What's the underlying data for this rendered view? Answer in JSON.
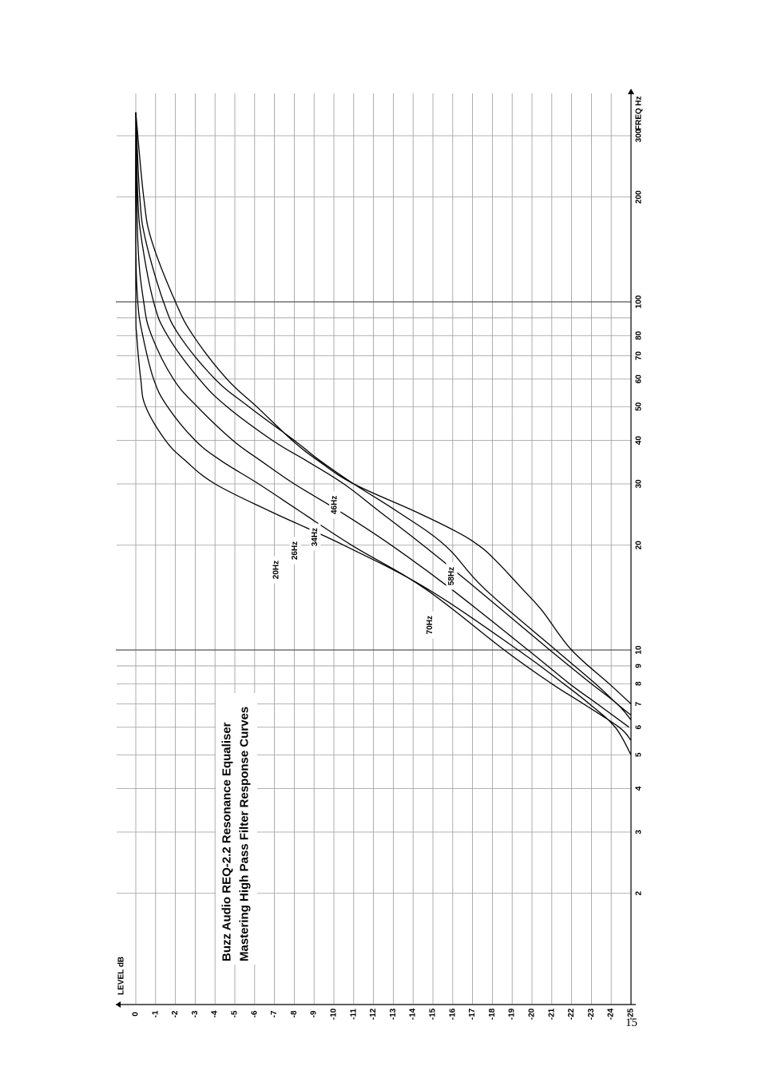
{
  "page": {
    "number": "15"
  },
  "chart_data": {
    "type": "line",
    "title_lines": [
      "Buzz Audio REQ-2.2 Resonance Equaliser",
      "Mastering High Pass Filter Response Curves"
    ],
    "xlabel": "FREQ Hz",
    "ylabel": "LEVEL dB",
    "x_scale": "log",
    "xlim": [
      1,
      350
    ],
    "ylim": [
      -25,
      0
    ],
    "x_tick_labels": [
      {
        "value": 2,
        "label": "2"
      },
      {
        "value": 3,
        "label": "3"
      },
      {
        "value": 4,
        "label": "4"
      },
      {
        "value": 5,
        "label": "5"
      },
      {
        "value": 6,
        "label": "6"
      },
      {
        "value": 7,
        "label": "7"
      },
      {
        "value": 8,
        "label": "8"
      },
      {
        "value": 9,
        "label": "9"
      },
      {
        "value": 10,
        "label": "10"
      },
      {
        "value": 20,
        "label": "20"
      },
      {
        "value": 30,
        "label": "30"
      },
      {
        "value": 40,
        "label": "40"
      },
      {
        "value": 50,
        "label": "50"
      },
      {
        "value": 60,
        "label": "60"
      },
      {
        "value": 70,
        "label": "70"
      },
      {
        "value": 80,
        "label": "80"
      },
      {
        "value": 100,
        "label": "100"
      },
      {
        "value": 200,
        "label": "200"
      },
      {
        "value": 300,
        "label": "300"
      }
    ],
    "x_gridlines": [
      2,
      3,
      4,
      5,
      6,
      7,
      8,
      9,
      10,
      20,
      30,
      40,
      50,
      60,
      70,
      80,
      90,
      100,
      200,
      300
    ],
    "y_tick_labels": [
      "0",
      "-1",
      "-2",
      "-3",
      "-4",
      "-5",
      "-6",
      "-7",
      "-8",
      "-9",
      "-10",
      "-11",
      "-12",
      "-13",
      "-14",
      "-15",
      "-16",
      "-17",
      "-18",
      "-19",
      "-20",
      "-21",
      "-22",
      "-23",
      "-24",
      "-25"
    ],
    "grid": true,
    "series": [
      {
        "name": "20Hz",
        "label_at": [
          17,
          -7.1
        ],
        "points": [
          [
            5,
            -25
          ],
          [
            6,
            -24.2
          ],
          [
            7,
            -22.9
          ],
          [
            8,
            -21.6
          ],
          [
            10,
            -19.3
          ],
          [
            15,
            -14.7
          ],
          [
            20,
            -10.5
          ],
          [
            25,
            -6.8
          ],
          [
            30,
            -4
          ],
          [
            35,
            -2.5
          ],
          [
            40,
            -1.5
          ],
          [
            50,
            -0.5
          ],
          [
            60,
            -0.25
          ],
          [
            80,
            -0.05
          ],
          [
            100,
            0
          ],
          [
            350,
            0
          ]
        ]
      },
      {
        "name": "26Hz",
        "label_at": [
          19.3,
          -8.05
        ],
        "points": [
          [
            5.5,
            -25
          ],
          [
            6,
            -24.4
          ],
          [
            7,
            -22.6
          ],
          [
            8,
            -21
          ],
          [
            10,
            -18.6
          ],
          [
            15,
            -14.6
          ],
          [
            20,
            -10.9
          ],
          [
            25,
            -8.3
          ],
          [
            30,
            -6.2
          ],
          [
            35,
            -4.3
          ],
          [
            40,
            -3
          ],
          [
            50,
            -1.6
          ],
          [
            60,
            -0.9
          ],
          [
            80,
            -0.35
          ],
          [
            100,
            -0.1
          ],
          [
            150,
            0
          ],
          [
            350,
            0
          ]
        ]
      },
      {
        "name": "34Hz",
        "label_at": [
          21.1,
          -9.05
        ],
        "points": [
          [
            6,
            -24.9
          ],
          [
            7,
            -23.3
          ],
          [
            8,
            -21.9
          ],
          [
            10,
            -19.8
          ],
          [
            15,
            -15.9
          ],
          [
            20,
            -12.9
          ],
          [
            25,
            -10.3
          ],
          [
            30,
            -8
          ],
          [
            35,
            -6.3
          ],
          [
            40,
            -4.9
          ],
          [
            50,
            -3.1
          ],
          [
            60,
            -1.9
          ],
          [
            80,
            -0.8
          ],
          [
            100,
            -0.4
          ],
          [
            150,
            -0.1
          ],
          [
            350,
            0
          ]
        ]
      },
      {
        "name": "46Hz",
        "label_at": [
          26.1,
          -10.05
        ],
        "points": [
          [
            6.3,
            -25
          ],
          [
            7,
            -24.3
          ],
          [
            8,
            -23
          ],
          [
            10,
            -20.9
          ],
          [
            15,
            -17.2
          ],
          [
            20,
            -14.5
          ],
          [
            25,
            -12.3
          ],
          [
            30,
            -10.5
          ],
          [
            35,
            -8.6
          ],
          [
            40,
            -6.9
          ],
          [
            50,
            -4.6
          ],
          [
            60,
            -3.2
          ],
          [
            80,
            -1.6
          ],
          [
            100,
            -0.9
          ],
          [
            150,
            -0.3
          ],
          [
            200,
            -0.1
          ],
          [
            350,
            0
          ]
        ]
      },
      {
        "name": "58Hz",
        "label_at": [
          16.3,
          -15.95
        ],
        "points": [
          [
            6.5,
            -25
          ],
          [
            7,
            -24.3
          ],
          [
            8,
            -23.2
          ],
          [
            10,
            -21.2
          ],
          [
            15,
            -17.6
          ],
          [
            20,
            -15.6
          ],
          [
            25,
            -13.2
          ],
          [
            30,
            -11
          ],
          [
            35,
            -9.3
          ],
          [
            40,
            -8
          ],
          [
            50,
            -5.7
          ],
          [
            60,
            -4
          ],
          [
            80,
            -2.2
          ],
          [
            100,
            -1.4
          ],
          [
            150,
            -0.5
          ],
          [
            200,
            -0.2
          ],
          [
            350,
            0
          ]
        ]
      },
      {
        "name": "70Hz",
        "label_at": [
          11.8,
          -14.85
        ],
        "points": [
          [
            7,
            -25
          ],
          [
            8,
            -23.9
          ],
          [
            10,
            -22
          ],
          [
            13,
            -20.5
          ],
          [
            15,
            -19.5
          ],
          [
            18,
            -18.2
          ],
          [
            20,
            -17.3
          ],
          [
            22,
            -16.1
          ],
          [
            25,
            -14.1
          ],
          [
            30,
            -11
          ],
          [
            35,
            -9.2
          ],
          [
            40,
            -7.9
          ],
          [
            50,
            -6.1
          ],
          [
            60,
            -4.6
          ],
          [
            80,
            -2.9
          ],
          [
            100,
            -2
          ],
          [
            150,
            -0.8
          ],
          [
            200,
            -0.4
          ],
          [
            350,
            0
          ]
        ]
      }
    ]
  }
}
